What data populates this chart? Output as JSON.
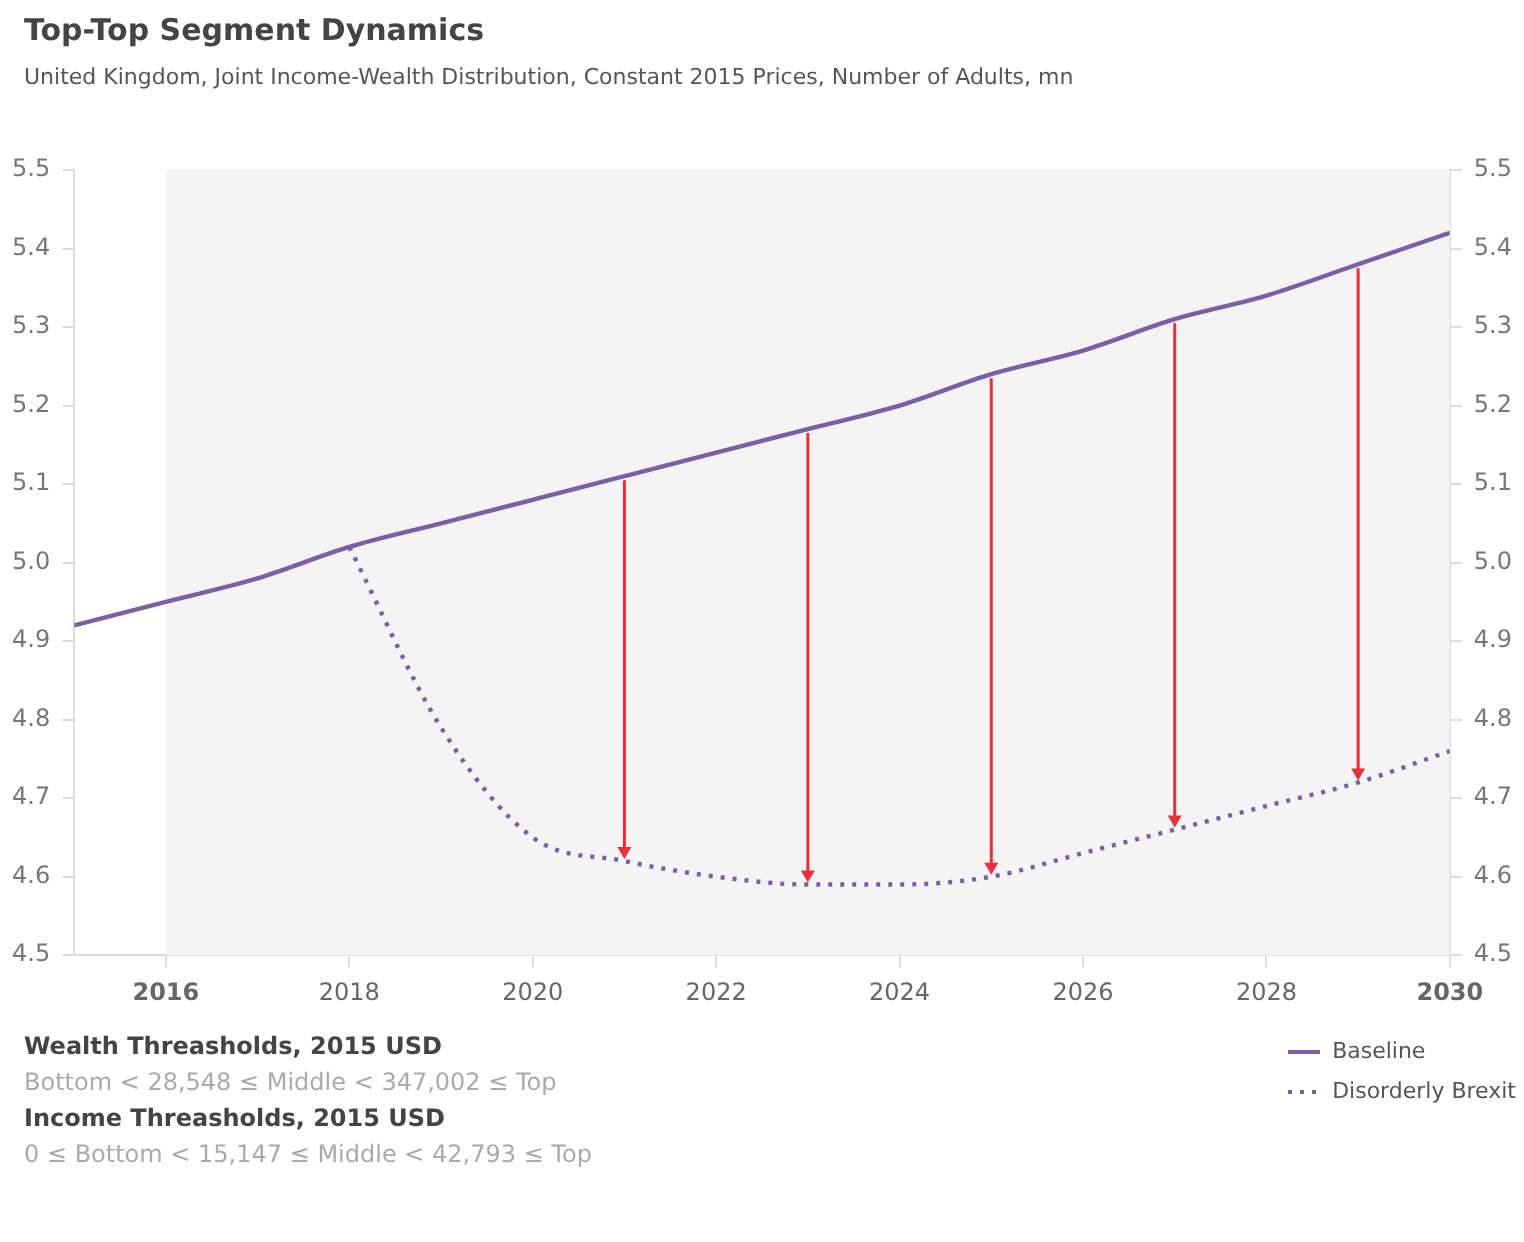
{
  "chart_data": {
    "type": "line",
    "title": "Top-Top Segment Dynamics",
    "subtitle": "United Kingdom, Joint Income-Wealth Distribution, Constant 2015 Prices, Number of Adults, mn",
    "x": [
      2015,
      2016,
      2017,
      2018,
      2019,
      2020,
      2021,
      2022,
      2023,
      2024,
      2025,
      2026,
      2027,
      2028,
      2029,
      2030
    ],
    "series": [
      {
        "name": "Baseline",
        "color": "#7b5ea7",
        "line_style": "solid",
        "values": [
          4.92,
          4.95,
          4.98,
          5.02,
          5.05,
          5.08,
          5.11,
          5.14,
          5.17,
          5.2,
          5.24,
          5.27,
          5.31,
          5.34,
          5.38,
          5.42
        ]
      },
      {
        "name": "Disorderly Brexit",
        "color": "#7b5ea7",
        "line_style": "dotted",
        "values": [
          null,
          null,
          null,
          5.02,
          4.79,
          4.65,
          4.62,
          4.6,
          4.59,
          4.59,
          4.6,
          4.63,
          4.66,
          4.69,
          4.72,
          4.76
        ]
      }
    ],
    "xlim": [
      2015,
      2030
    ],
    "xticks": [
      2016,
      2018,
      2020,
      2022,
      2024,
      2026,
      2028,
      2030
    ],
    "ylim": [
      4.5,
      5.5
    ],
    "yticks": [
      4.5,
      4.6,
      4.7,
      4.8,
      4.9,
      {
        "value": 5,
        "label": "5.0"
      },
      5.1,
      5.2,
      5.3,
      5.4,
      5.5
    ],
    "y2lim": [
      4.5,
      5.5
    ],
    "y2ticks": [
      4.5,
      4.6,
      4.7,
      4.8,
      4.9,
      {
        "value": 5,
        "label": "5.0"
      },
      5.1,
      5.2,
      5.3,
      5.4,
      5.5
    ],
    "bands": [
      {
        "axis": "x",
        "from": 2016,
        "to": 2030,
        "color": "#f4f4f4"
      }
    ],
    "grid": false,
    "legend": "bottom right",
    "marker": "none",
    "annotations": [
      "Wealth Threasholds, 2015 USD",
      "Bottom < 28,548 ≤ Middle < 347,002 ≤ Top",
      "Income Threasholds, 2015 USD",
      "0 ≤ Bottom < 15,147 ≤ Middle < 42,793 ≤ Top"
    ]
  }
}
